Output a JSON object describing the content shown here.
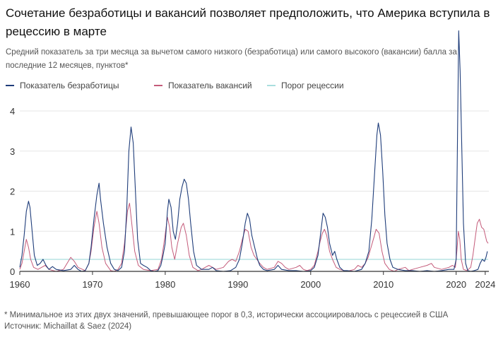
{
  "title": "Сочетание безработицы и вакансий позволяет предположить, что Америка вступила в рецессию в марте",
  "subtitle": "Средний показатель за три месяца за вычетом самого низкого (безработица) или самого высокого (вакансии) балла за последние 12 месяцев, пунктов*",
  "footnote": "* Минимальное из этих двух значений, превышающее порог в 0,3, исторически ассоциировалось с рецессией в США",
  "source": "Источник: Michaillat & Saez (2024)",
  "colors": {
    "unemployment": "#1f3d7a",
    "vacancies": "#c45b7a",
    "threshold": "#a9dede",
    "axis": "#333333",
    "grid": "#e6e6e6"
  },
  "chart_data": {
    "type": "line",
    "xlim": [
      1960,
      2024.5
    ],
    "ylim": [
      0,
      4.3
    ],
    "x_ticks": [
      1960,
      1970,
      1980,
      1990,
      2000,
      2010,
      2020,
      2024
    ],
    "x_tick_labels": [
      "1960",
      "1970",
      "1980",
      "1990",
      "2000",
      "2010",
      "2020",
      "2024"
    ],
    "y_ticks": [
      0,
      1,
      2,
      3,
      4
    ],
    "y_tick_labels": [
      "0",
      "1",
      "2",
      "3",
      "4"
    ],
    "grid": "horizontal",
    "legend": "top-left",
    "threshold": 0.3,
    "series": [
      {
        "name": "Показатель безработицы",
        "points": [
          [
            1960.0,
            0.1
          ],
          [
            1960.3,
            0.4
          ],
          [
            1960.6,
            0.9
          ],
          [
            1960.9,
            1.5
          ],
          [
            1961.2,
            1.75
          ],
          [
            1961.4,
            1.6
          ],
          [
            1961.7,
            1.0
          ],
          [
            1962.0,
            0.4
          ],
          [
            1962.4,
            0.15
          ],
          [
            1962.8,
            0.2
          ],
          [
            1963.2,
            0.3
          ],
          [
            1963.6,
            0.15
          ],
          [
            1964.0,
            0.05
          ],
          [
            1964.5,
            0.12
          ],
          [
            1965.0,
            0.05
          ],
          [
            1966.0,
            0.02
          ],
          [
            1967.0,
            0.05
          ],
          [
            1967.5,
            0.15
          ],
          [
            1968.0,
            0.05
          ],
          [
            1968.5,
            0.0
          ],
          [
            1969.0,
            0.02
          ],
          [
            1969.5,
            0.2
          ],
          [
            1969.8,
            0.6
          ],
          [
            1970.2,
            1.3
          ],
          [
            1970.6,
            1.9
          ],
          [
            1970.9,
            2.2
          ],
          [
            1971.1,
            1.8
          ],
          [
            1971.5,
            1.2
          ],
          [
            1972.0,
            0.6
          ],
          [
            1972.5,
            0.2
          ],
          [
            1973.0,
            0.05
          ],
          [
            1973.5,
            0.02
          ],
          [
            1974.0,
            0.1
          ],
          [
            1974.4,
            0.5
          ],
          [
            1974.7,
            1.5
          ],
          [
            1975.0,
            3.0
          ],
          [
            1975.3,
            3.6
          ],
          [
            1975.6,
            3.2
          ],
          [
            1975.9,
            2.0
          ],
          [
            1976.2,
            0.8
          ],
          [
            1976.6,
            0.2
          ],
          [
            1977.0,
            0.15
          ],
          [
            1977.5,
            0.1
          ],
          [
            1978.0,
            0.02
          ],
          [
            1978.5,
            0.0
          ],
          [
            1979.0,
            0.02
          ],
          [
            1979.4,
            0.15
          ],
          [
            1979.7,
            0.4
          ],
          [
            1980.0,
            0.7
          ],
          [
            1980.3,
            1.5
          ],
          [
            1980.5,
            1.8
          ],
          [
            1980.8,
            1.6
          ],
          [
            1981.1,
            1.0
          ],
          [
            1981.4,
            0.8
          ],
          [
            1981.7,
            1.2
          ],
          [
            1982.0,
            1.8
          ],
          [
            1982.3,
            2.1
          ],
          [
            1982.6,
            2.3
          ],
          [
            1982.9,
            2.2
          ],
          [
            1983.2,
            1.8
          ],
          [
            1983.5,
            1.2
          ],
          [
            1983.9,
            0.5
          ],
          [
            1984.3,
            0.15
          ],
          [
            1985.0,
            0.05
          ],
          [
            1986.0,
            0.05
          ],
          [
            1986.5,
            0.1
          ],
          [
            1987.0,
            0.02
          ],
          [
            1988.0,
            0.0
          ],
          [
            1989.0,
            0.02
          ],
          [
            1989.7,
            0.1
          ],
          [
            1990.2,
            0.3
          ],
          [
            1990.6,
            0.7
          ],
          [
            1991.0,
            1.2
          ],
          [
            1991.3,
            1.45
          ],
          [
            1991.6,
            1.3
          ],
          [
            1991.9,
            0.9
          ],
          [
            1992.3,
            0.6
          ],
          [
            1992.7,
            0.3
          ],
          [
            1993.0,
            0.15
          ],
          [
            1993.5,
            0.05
          ],
          [
            1994.0,
            0.02
          ],
          [
            1995.0,
            0.05
          ],
          [
            1995.5,
            0.15
          ],
          [
            1996.0,
            0.05
          ],
          [
            1997.0,
            0.02
          ],
          [
            1998.0,
            0.02
          ],
          [
            1999.0,
            0.0
          ],
          [
            2000.0,
            0.02
          ],
          [
            2000.5,
            0.1
          ],
          [
            2001.0,
            0.4
          ],
          [
            2001.4,
            1.0
          ],
          [
            2001.7,
            1.45
          ],
          [
            2002.0,
            1.35
          ],
          [
            2002.3,
            1.1
          ],
          [
            2002.6,
            0.7
          ],
          [
            2003.0,
            0.4
          ],
          [
            2003.3,
            0.5
          ],
          [
            2003.6,
            0.3
          ],
          [
            2004.0,
            0.1
          ],
          [
            2004.5,
            0.02
          ],
          [
            2005.0,
            0.02
          ],
          [
            2006.0,
            0.0
          ],
          [
            2007.0,
            0.05
          ],
          [
            2007.5,
            0.2
          ],
          [
            2008.0,
            0.5
          ],
          [
            2008.4,
            1.3
          ],
          [
            2008.8,
            2.5
          ],
          [
            2009.1,
            3.4
          ],
          [
            2009.3,
            3.7
          ],
          [
            2009.6,
            3.4
          ],
          [
            2009.9,
            2.5
          ],
          [
            2010.2,
            1.4
          ],
          [
            2010.5,
            0.7
          ],
          [
            2010.9,
            0.3
          ],
          [
            2011.3,
            0.1
          ],
          [
            2012.0,
            0.05
          ],
          [
            2013.0,
            0.02
          ],
          [
            2014.0,
            0.02
          ],
          [
            2015.0,
            0.0
          ],
          [
            2016.0,
            0.02
          ],
          [
            2017.0,
            0.0
          ],
          [
            2018.0,
            0.02
          ],
          [
            2019.0,
            0.05
          ],
          [
            2019.7,
            0.05
          ],
          [
            2020.0,
            0.3
          ],
          [
            2020.2,
            3.5
          ],
          [
            2020.35,
            6.0
          ],
          [
            2020.55,
            5.0
          ],
          [
            2020.75,
            3.3
          ],
          [
            2021.0,
            1.2
          ],
          [
            2021.3,
            0.2
          ],
          [
            2021.6,
            0.02
          ],
          [
            2022.0,
            0.0
          ],
          [
            2022.5,
            0.02
          ],
          [
            2023.0,
            0.05
          ],
          [
            2023.3,
            0.2
          ],
          [
            2023.6,
            0.3
          ],
          [
            2023.9,
            0.25
          ],
          [
            2024.1,
            0.35
          ],
          [
            2024.3,
            0.5
          ]
        ]
      },
      {
        "name": "Показатель вакансий",
        "points": [
          [
            1960.0,
            0.05
          ],
          [
            1960.3,
            0.2
          ],
          [
            1960.6,
            0.5
          ],
          [
            1960.9,
            0.8
          ],
          [
            1961.2,
            0.6
          ],
          [
            1961.5,
            0.3
          ],
          [
            1961.9,
            0.1
          ],
          [
            1962.5,
            0.05
          ],
          [
            1963.0,
            0.1
          ],
          [
            1963.5,
            0.15
          ],
          [
            1964.0,
            0.05
          ],
          [
            1965.0,
            0.0
          ],
          [
            1966.0,
            0.05
          ],
          [
            1966.5,
            0.2
          ],
          [
            1967.0,
            0.35
          ],
          [
            1967.5,
            0.25
          ],
          [
            1968.0,
            0.1
          ],
          [
            1969.0,
            0.02
          ],
          [
            1969.5,
            0.2
          ],
          [
            1969.8,
            0.5
          ],
          [
            1970.2,
            1.1
          ],
          [
            1970.6,
            1.5
          ],
          [
            1970.9,
            1.2
          ],
          [
            1971.3,
            0.6
          ],
          [
            1971.8,
            0.2
          ],
          [
            1972.5,
            0.02
          ],
          [
            1973.0,
            0.0
          ],
          [
            1973.5,
            0.05
          ],
          [
            1974.0,
            0.2
          ],
          [
            1974.4,
            0.7
          ],
          [
            1974.8,
            1.5
          ],
          [
            1975.1,
            1.7
          ],
          [
            1975.4,
            1.2
          ],
          [
            1975.8,
            0.5
          ],
          [
            1976.3,
            0.15
          ],
          [
            1977.0,
            0.05
          ],
          [
            1978.0,
            0.02
          ],
          [
            1979.0,
            0.05
          ],
          [
            1979.5,
            0.3
          ],
          [
            1979.9,
            0.8
          ],
          [
            1980.3,
            1.35
          ],
          [
            1980.6,
            1.1
          ],
          [
            1980.9,
            0.6
          ],
          [
            1981.3,
            0.3
          ],
          [
            1981.7,
            0.7
          ],
          [
            1982.2,
            1.1
          ],
          [
            1982.5,
            1.2
          ],
          [
            1982.9,
            0.9
          ],
          [
            1983.3,
            0.4
          ],
          [
            1983.8,
            0.1
          ],
          [
            1984.5,
            0.02
          ],
          [
            1985.0,
            0.05
          ],
          [
            1985.5,
            0.1
          ],
          [
            1986.0,
            0.15
          ],
          [
            1986.5,
            0.1
          ],
          [
            1987.0,
            0.05
          ],
          [
            1988.0,
            0.1
          ],
          [
            1988.7,
            0.25
          ],
          [
            1989.2,
            0.3
          ],
          [
            1989.7,
            0.25
          ],
          [
            1990.2,
            0.5
          ],
          [
            1990.6,
            0.8
          ],
          [
            1991.0,
            1.05
          ],
          [
            1991.4,
            1.0
          ],
          [
            1991.8,
            0.6
          ],
          [
            1992.2,
            0.4
          ],
          [
            1992.6,
            0.3
          ],
          [
            1993.0,
            0.2
          ],
          [
            1993.5,
            0.1
          ],
          [
            1994.0,
            0.05
          ],
          [
            1995.0,
            0.1
          ],
          [
            1995.5,
            0.25
          ],
          [
            1996.0,
            0.2
          ],
          [
            1996.5,
            0.1
          ],
          [
            1997.0,
            0.05
          ],
          [
            1998.0,
            0.1
          ],
          [
            1998.5,
            0.15
          ],
          [
            1999.0,
            0.05
          ],
          [
            1999.5,
            0.02
          ],
          [
            2000.0,
            0.05
          ],
          [
            2000.5,
            0.15
          ],
          [
            2001.0,
            0.5
          ],
          [
            2001.3,
            0.75
          ],
          [
            2001.6,
            0.95
          ],
          [
            2001.9,
            1.05
          ],
          [
            2002.2,
            0.9
          ],
          [
            2002.6,
            0.5
          ],
          [
            2003.0,
            0.3
          ],
          [
            2003.5,
            0.1
          ],
          [
            2004.0,
            0.05
          ],
          [
            2005.0,
            0.0
          ],
          [
            2006.0,
            0.05
          ],
          [
            2006.5,
            0.15
          ],
          [
            2007.0,
            0.1
          ],
          [
            2007.5,
            0.2
          ],
          [
            2007.9,
            0.35
          ],
          [
            2008.3,
            0.6
          ],
          [
            2008.7,
            0.85
          ],
          [
            2009.0,
            1.05
          ],
          [
            2009.4,
            0.95
          ],
          [
            2009.8,
            0.5
          ],
          [
            2010.2,
            0.2
          ],
          [
            2010.8,
            0.05
          ],
          [
            2011.5,
            0.0
          ],
          [
            2012.0,
            0.05
          ],
          [
            2013.0,
            0.1
          ],
          [
            2013.5,
            0.02
          ],
          [
            2014.0,
            0.05
          ],
          [
            2015.0,
            0.1
          ],
          [
            2016.0,
            0.15
          ],
          [
            2016.6,
            0.2
          ],
          [
            2017.0,
            0.1
          ],
          [
            2018.0,
            0.05
          ],
          [
            2019.0,
            0.1
          ],
          [
            2019.5,
            0.15
          ],
          [
            2019.9,
            0.1
          ],
          [
            2020.1,
            0.5
          ],
          [
            2020.3,
            1.0
          ],
          [
            2020.5,
            0.8
          ],
          [
            2020.7,
            0.3
          ],
          [
            2021.0,
            0.05
          ],
          [
            2021.5,
            0.02
          ],
          [
            2022.0,
            0.1
          ],
          [
            2022.3,
            0.4
          ],
          [
            2022.6,
            0.8
          ],
          [
            2022.9,
            1.2
          ],
          [
            2023.2,
            1.3
          ],
          [
            2023.5,
            1.1
          ],
          [
            2023.8,
            1.05
          ],
          [
            2024.0,
            0.9
          ],
          [
            2024.2,
            0.75
          ],
          [
            2024.4,
            0.7
          ]
        ]
      },
      {
        "name": "Порог рецессии",
        "points": [
          [
            1960,
            0.3
          ],
          [
            2024.4,
            0.3
          ]
        ]
      }
    ]
  }
}
